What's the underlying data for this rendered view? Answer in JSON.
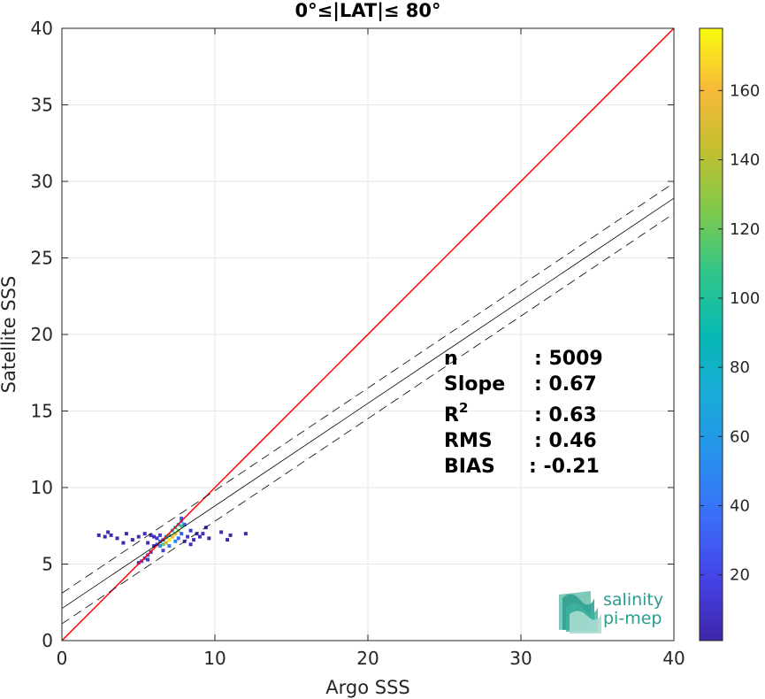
{
  "chart_data": {
    "type": "heatmap",
    "title": "0°≤|LAT|≤ 80°",
    "xlabel": "Argo SSS",
    "ylabel": "Satellite SSS",
    "xlim": [
      0,
      40
    ],
    "ylim": [
      0,
      40
    ],
    "x_ticks": [
      0,
      10,
      20,
      30,
      40
    ],
    "y_ticks": [
      0,
      5,
      10,
      15,
      20,
      25,
      30,
      35,
      40
    ],
    "grid": true,
    "colorbar": {
      "range": [
        1,
        178
      ],
      "ticks": [
        20,
        40,
        60,
        80,
        100,
        120,
        140,
        160
      ],
      "colormap": "parula"
    },
    "identity_line": {
      "color": "#ff0000",
      "x": [
        0,
        40
      ],
      "y": [
        0,
        40
      ]
    },
    "regression": {
      "slope": 0.67,
      "intercept": 2.1,
      "band": 1.0,
      "color": "#000000"
    },
    "stats": [
      {
        "label": "n",
        "value": ": 5009"
      },
      {
        "label": "Slope",
        "value": ": 0.67"
      },
      {
        "label": "R",
        "sup": "2",
        "value": ": 0.63"
      },
      {
        "label": "RMS",
        "value": ": 0.46"
      },
      {
        "label": "BIAS",
        "value": ": -0.21"
      }
    ],
    "density_cells": [
      {
        "x": 7.0,
        "y": 6.6,
        "count": 175
      },
      {
        "x": 7.2,
        "y": 6.8,
        "count": 160
      },
      {
        "x": 7.4,
        "y": 7.0,
        "count": 145
      },
      {
        "x": 7.6,
        "y": 7.2,
        "count": 130
      },
      {
        "x": 7.8,
        "y": 7.5,
        "count": 110
      },
      {
        "x": 6.8,
        "y": 6.4,
        "count": 150
      },
      {
        "x": 6.6,
        "y": 6.3,
        "count": 120
      },
      {
        "x": 7.0,
        "y": 6.9,
        "count": 100
      },
      {
        "x": 7.4,
        "y": 7.4,
        "count": 90
      },
      {
        "x": 7.8,
        "y": 7.8,
        "count": 60
      },
      {
        "x": 7.6,
        "y": 7.6,
        "count": 75
      },
      {
        "x": 6.8,
        "y": 6.8,
        "count": 70
      },
      {
        "x": 6.4,
        "y": 6.2,
        "count": 55
      },
      {
        "x": 6.6,
        "y": 6.6,
        "count": 45
      },
      {
        "x": 7.2,
        "y": 7.2,
        "count": 85
      },
      {
        "x": 7.0,
        "y": 6.2,
        "count": 40
      },
      {
        "x": 6.4,
        "y": 6.5,
        "count": 35
      },
      {
        "x": 7.8,
        "y": 7.0,
        "count": 30
      },
      {
        "x": 8.0,
        "y": 7.6,
        "count": 28
      },
      {
        "x": 7.6,
        "y": 6.7,
        "count": 32
      },
      {
        "x": 6.2,
        "y": 6.3,
        "count": 25
      },
      {
        "x": 7.4,
        "y": 6.5,
        "count": 50
      },
      {
        "x": 7.8,
        "y": 8.0,
        "count": 22
      },
      {
        "x": 6.6,
        "y": 5.9,
        "count": 18
      },
      {
        "x": 5.4,
        "y": 5.4,
        "count": 30
      },
      {
        "x": 5.6,
        "y": 5.6,
        "count": 25
      },
      {
        "x": 5.2,
        "y": 5.2,
        "count": 18
      },
      {
        "x": 5.8,
        "y": 5.8,
        "count": 15
      },
      {
        "x": 5.0,
        "y": 5.1,
        "count": 10
      },
      {
        "x": 5.6,
        "y": 5.3,
        "count": 12
      },
      {
        "x": 8.4,
        "y": 7.2,
        "count": 10
      },
      {
        "x": 8.8,
        "y": 7.0,
        "count": 8
      },
      {
        "x": 9.2,
        "y": 7.0,
        "count": 6
      },
      {
        "x": 8.6,
        "y": 6.6,
        "count": 7
      },
      {
        "x": 9.0,
        "y": 6.8,
        "count": 5
      },
      {
        "x": 6.0,
        "y": 6.8,
        "count": 8
      },
      {
        "x": 5.8,
        "y": 6.9,
        "count": 6
      },
      {
        "x": 8.2,
        "y": 6.8,
        "count": 12
      },
      {
        "x": 8.0,
        "y": 6.5,
        "count": 9
      },
      {
        "x": 6.2,
        "y": 6.7,
        "count": 10
      },
      {
        "x": 9.6,
        "y": 6.7,
        "count": 4
      },
      {
        "x": 10.4,
        "y": 7.1,
        "count": 3
      },
      {
        "x": 11.0,
        "y": 6.9,
        "count": 2
      },
      {
        "x": 12.0,
        "y": 7.0,
        "count": 2
      },
      {
        "x": 2.4,
        "y": 6.9,
        "count": 2
      },
      {
        "x": 2.8,
        "y": 6.8,
        "count": 3
      },
      {
        "x": 3.2,
        "y": 6.9,
        "count": 3
      },
      {
        "x": 3.6,
        "y": 6.7,
        "count": 2
      },
      {
        "x": 4.2,
        "y": 7.0,
        "count": 3
      },
      {
        "x": 4.6,
        "y": 6.6,
        "count": 4
      },
      {
        "x": 5.0,
        "y": 6.8,
        "count": 3
      },
      {
        "x": 5.4,
        "y": 7.0,
        "count": 5
      },
      {
        "x": 4.0,
        "y": 6.4,
        "count": 2
      },
      {
        "x": 3.0,
        "y": 7.1,
        "count": 2
      },
      {
        "x": 9.4,
        "y": 7.4,
        "count": 3
      },
      {
        "x": 10.8,
        "y": 6.6,
        "count": 2
      },
      {
        "x": 6.0,
        "y": 6.2,
        "count": 7
      },
      {
        "x": 5.6,
        "y": 6.4,
        "count": 5
      },
      {
        "x": 8.4,
        "y": 6.3,
        "count": 5
      },
      {
        "x": 6.4,
        "y": 6.9,
        "count": 15
      }
    ]
  },
  "logo": {
    "line1": "salinity",
    "line2": "pi-mep"
  }
}
